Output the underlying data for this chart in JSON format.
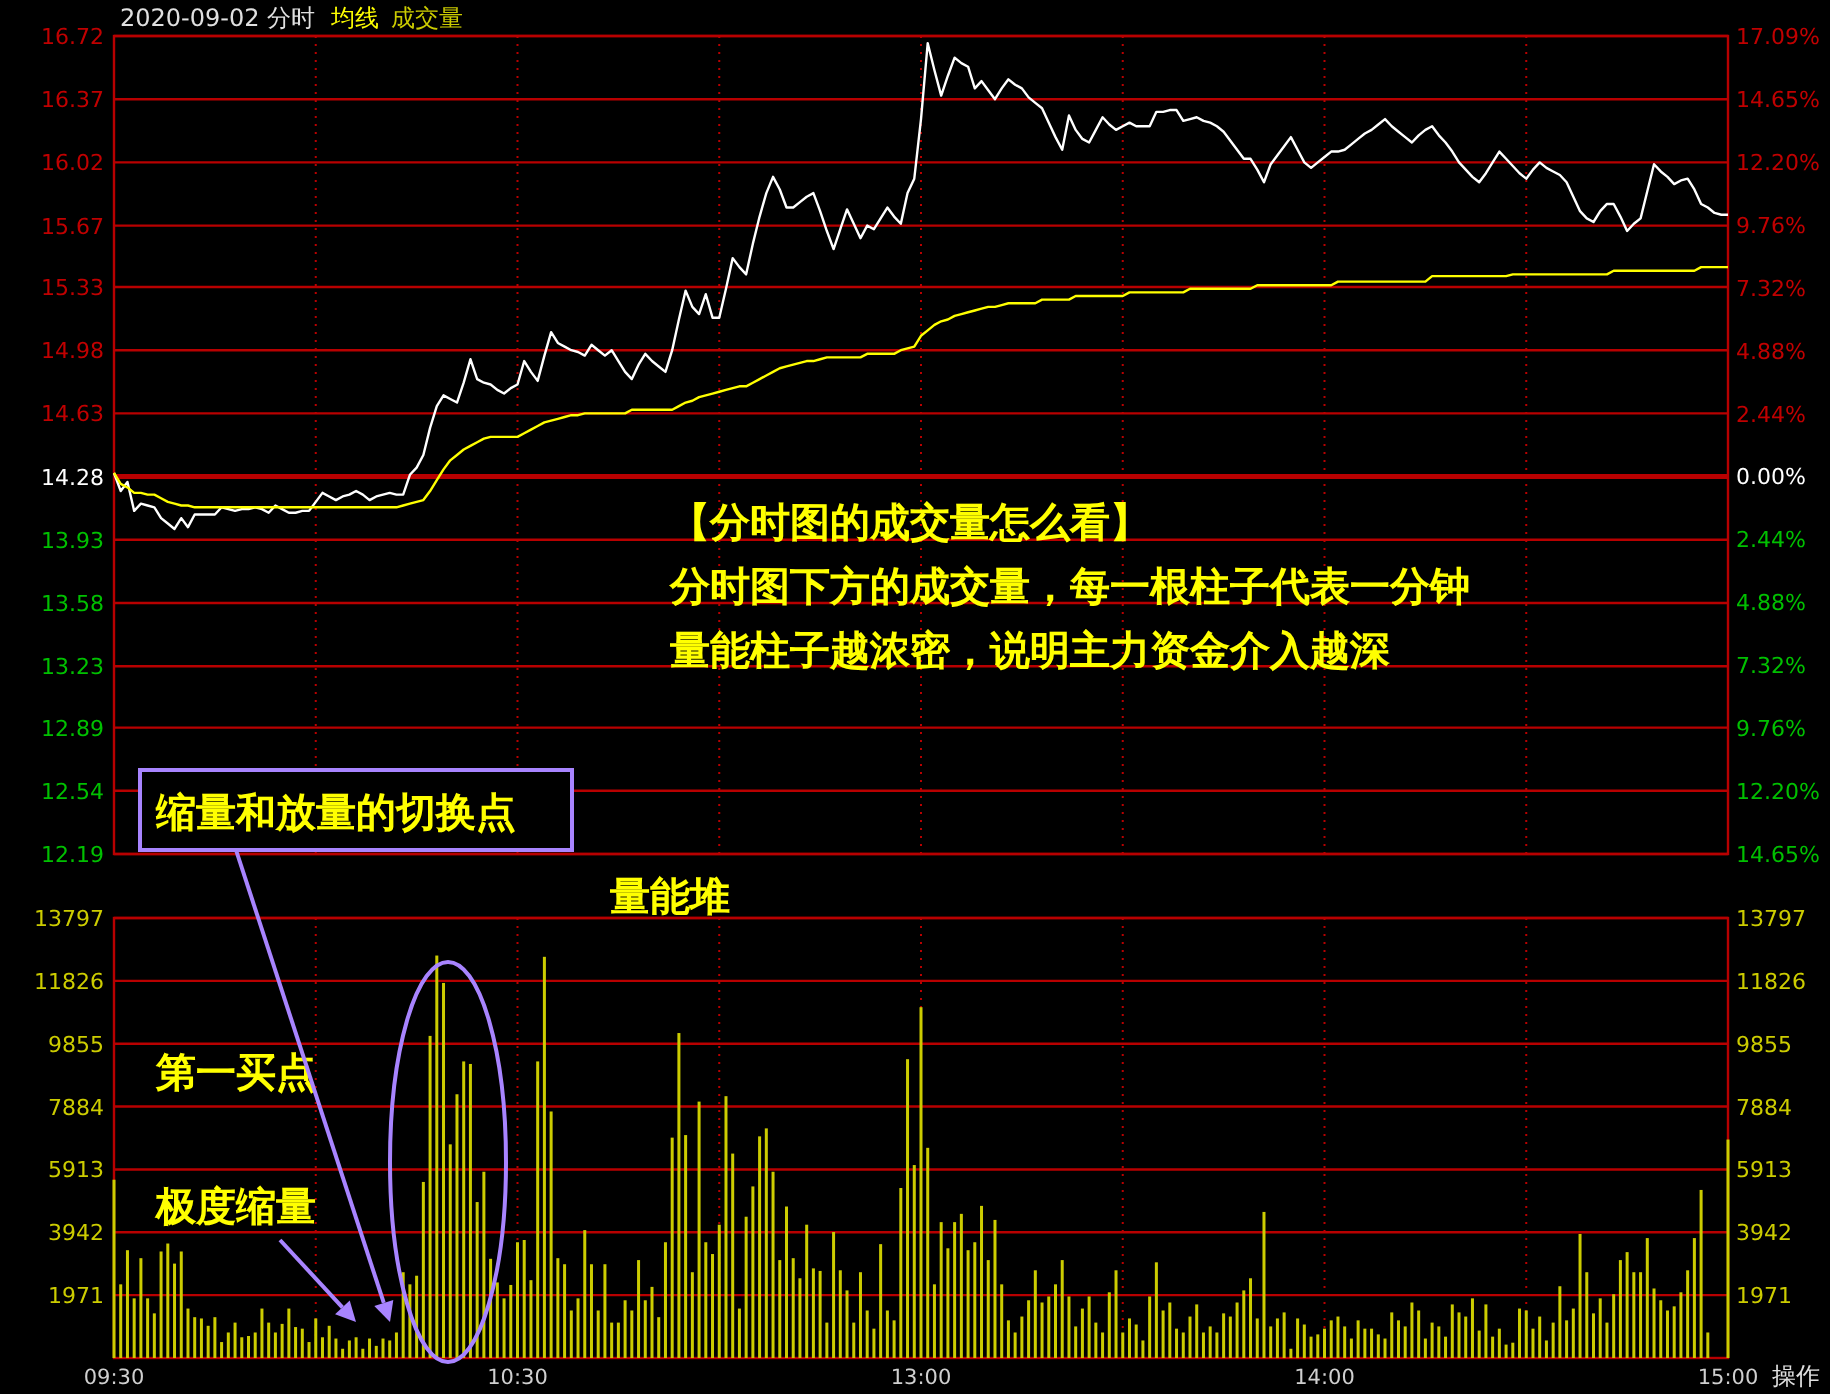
{
  "chart_data": [
    {
      "type": "line",
      "title": "2020-09-02 分时",
      "legend": "top left",
      "grid": true,
      "tick_labels": "y",
      "categories": [
        "09:30",
        null,
        null,
        null,
        null,
        null,
        null,
        null,
        null,
        null,
        null,
        null,
        null,
        null,
        null,
        null,
        null,
        null,
        null,
        null,
        null,
        null,
        null,
        null,
        null,
        null,
        null,
        null,
        null,
        null,
        null,
        null,
        null,
        null,
        null,
        null,
        null,
        null,
        null,
        null,
        null,
        null,
        null,
        null,
        null,
        null,
        null,
        null,
        null,
        null,
        null,
        null,
        null,
        null,
        null,
        null,
        null,
        null,
        null,
        null,
        "10:30",
        null,
        null,
        null,
        null,
        null,
        null,
        null,
        null,
        null,
        null,
        null,
        null,
        null,
        null,
        null,
        null,
        null,
        null,
        null,
        null,
        null,
        null,
        null,
        null,
        null,
        null,
        null,
        null,
        null,
        null,
        null,
        null,
        null,
        null,
        null,
        null,
        null,
        null,
        null,
        null,
        null,
        null,
        null,
        null,
        null,
        null,
        null,
        null,
        null,
        null,
        null,
        null,
        null,
        null,
        null,
        null,
        null,
        null,
        null,
        "13:00",
        null,
        null,
        null,
        null,
        null,
        null,
        null,
        null,
        null,
        null,
        null,
        null,
        null,
        null,
        null,
        null,
        null,
        null,
        null,
        null,
        null,
        null,
        null,
        null,
        null,
        null,
        null,
        null,
        null,
        null,
        null,
        null,
        null,
        null,
        null,
        null,
        null,
        null,
        null,
        null,
        null,
        null,
        null,
        null,
        null,
        null,
        null,
        null,
        null,
        null,
        null,
        null,
        null,
        null,
        null,
        null,
        null,
        null,
        null,
        "14:00",
        null,
        null,
        null,
        null,
        null,
        null,
        null,
        null,
        null,
        null,
        null,
        null,
        null,
        null,
        null,
        null,
        null,
        null,
        null,
        null,
        null,
        null,
        null,
        null,
        null,
        null,
        null,
        null,
        null,
        null,
        null,
        null,
        null,
        null,
        null,
        null,
        null,
        null,
        null,
        null,
        null,
        null,
        null,
        null,
        null,
        null,
        null,
        null,
        null,
        null,
        null,
        null,
        null,
        null,
        null,
        null,
        null,
        null,
        null,
        "15:00"
      ],
      "ylim": [
        12.19,
        16.72
      ],
      "yticks": [
        16.72,
        16.37,
        16.02,
        15.67,
        15.33,
        14.98,
        14.63,
        14.28,
        13.93,
        13.58,
        13.23,
        12.89,
        12.54,
        12.19
      ],
      "y2lim": [
        -14.65,
        17.09
      ],
      "y2ticks": [
        {
          "value": 17.09,
          "label": "17.09%"
        },
        {
          "value": 14.65,
          "label": "14.65%"
        },
        {
          "value": 12.2,
          "label": "12.20%"
        },
        {
          "value": 9.76,
          "label": "9.76%"
        },
        {
          "value": 7.32,
          "label": "7.32%"
        },
        {
          "value": 4.88,
          "label": "4.88%"
        },
        {
          "value": 2.44,
          "label": "2.44%"
        },
        {
          "value": 0,
          "label": "0.00%"
        },
        {
          "value": -2.44,
          "label": "2.44%"
        },
        {
          "value": -4.88,
          "label": "4.88%"
        },
        {
          "value": -7.32,
          "label": "7.32%"
        },
        {
          "value": -9.76,
          "label": "9.76%"
        },
        {
          "value": -12.2,
          "label": "12.20%"
        },
        {
          "value": -14.65,
          "label": "14.65%"
        }
      ],
      "ref_lines": [
        {
          "axis": "y",
          "value": 14.28
        }
      ],
      "annotations": [
        "【分时图的成交量怎么看】",
        "分时图下方的成交量，每一根柱子代表一分钟",
        "量能柱子越浓密，说明主力资金介入越深"
      ],
      "series": [
        {
          "color": "#ffffff",
          "values": [
            14.3,
            14.2,
            14.25,
            14.09,
            14.13,
            14.12,
            14.11,
            14.05,
            14.02,
            13.99,
            14.05,
            14.0,
            14.07,
            14.07,
            14.07,
            14.07,
            14.11,
            14.1,
            14.09,
            14.1,
            14.1,
            14.11,
            14.1,
            14.08,
            14.12,
            14.1,
            14.08,
            14.08,
            14.09,
            14.09,
            14.14,
            14.19,
            14.17,
            14.15,
            14.17,
            14.18,
            14.2,
            14.18,
            14.15,
            14.17,
            14.18,
            14.19,
            14.18,
            14.18,
            14.29,
            14.33,
            14.4,
            14.55,
            14.67,
            14.73,
            14.71,
            14.69,
            14.8,
            14.93,
            14.82,
            14.8,
            14.79,
            14.76,
            14.74,
            14.77,
            14.79,
            14.92,
            14.86,
            14.81,
            14.95,
            15.08,
            15.02,
            15.0,
            14.98,
            14.97,
            14.95,
            15.01,
            14.98,
            14.95,
            14.98,
            14.92,
            14.86,
            14.82,
            14.9,
            14.96,
            14.92,
            14.89,
            14.86,
            14.98,
            15.15,
            15.31,
            15.22,
            15.18,
            15.29,
            15.16,
            15.16,
            15.32,
            15.49,
            15.44,
            15.4,
            15.57,
            15.72,
            15.85,
            15.94,
            15.87,
            15.77,
            15.77,
            15.8,
            15.83,
            15.85,
            15.75,
            15.64,
            15.54,
            15.65,
            15.76,
            15.68,
            15.6,
            15.67,
            15.65,
            15.71,
            15.77,
            15.72,
            15.68,
            15.85,
            15.93,
            16.26,
            16.68,
            16.53,
            16.39,
            16.5,
            16.6,
            16.57,
            16.55,
            16.43,
            16.47,
            16.42,
            16.37,
            16.43,
            16.48,
            16.45,
            16.43,
            16.38,
            16.35,
            16.32,
            16.24,
            16.16,
            16.09,
            16.28,
            16.2,
            16.15,
            16.13,
            16.2,
            16.27,
            16.23,
            16.2,
            16.22,
            16.24,
            16.22,
            16.22,
            16.22,
            16.3,
            16.3,
            16.31,
            16.31,
            16.25,
            16.26,
            16.27,
            16.25,
            16.24,
            16.22,
            16.19,
            16.14,
            16.09,
            16.04,
            16.04,
            15.98,
            15.91,
            16.01,
            16.06,
            16.11,
            16.16,
            16.09,
            16.02,
            15.99,
            16.02,
            16.05,
            16.08,
            16.08,
            16.09,
            16.12,
            16.15,
            16.18,
            16.2,
            16.23,
            16.26,
            16.22,
            16.19,
            16.16,
            16.13,
            16.17,
            16.2,
            16.22,
            16.17,
            16.13,
            16.08,
            16.02,
            15.98,
            15.94,
            15.91,
            15.96,
            16.02,
            16.08,
            16.04,
            16.0,
            15.96,
            15.93,
            15.98,
            16.02,
            15.99,
            15.97,
            15.95,
            15.91,
            15.83,
            15.75,
            15.71,
            15.69,
            15.75,
            15.79,
            15.79,
            15.72,
            15.64,
            15.68,
            15.71,
            15.86,
            16.01,
            15.97,
            15.94,
            15.9,
            15.92,
            15.93,
            15.87,
            15.79,
            15.77,
            15.74,
            15.73,
            15.73
          ]
        },
        {
          "name": "均线",
          "color": "#ffff00",
          "values": [
            14.3,
            14.24,
            14.22,
            14.19,
            14.19,
            14.18,
            14.18,
            14.16,
            14.14,
            14.13,
            14.12,
            14.12,
            14.11,
            14.11,
            14.11,
            14.11,
            14.11,
            14.11,
            14.11,
            14.11,
            14.11,
            14.11,
            14.11,
            14.11,
            14.11,
            14.11,
            14.11,
            14.11,
            14.11,
            14.11,
            14.11,
            14.11,
            14.11,
            14.11,
            14.11,
            14.11,
            14.11,
            14.11,
            14.11,
            14.11,
            14.11,
            14.11,
            14.11,
            14.12,
            14.13,
            14.14,
            14.15,
            14.2,
            14.26,
            14.32,
            14.37,
            14.4,
            14.43,
            14.45,
            14.47,
            14.49,
            14.5,
            14.5,
            14.5,
            14.5,
            14.5,
            14.52,
            14.54,
            14.56,
            14.58,
            14.59,
            14.6,
            14.61,
            14.62,
            14.62,
            14.63,
            14.63,
            14.63,
            14.63,
            14.63,
            14.63,
            14.63,
            14.65,
            14.65,
            14.65,
            14.65,
            14.65,
            14.65,
            14.65,
            14.67,
            14.69,
            14.7,
            14.72,
            14.73,
            14.74,
            14.75,
            14.76,
            14.77,
            14.78,
            14.78,
            14.8,
            14.82,
            14.84,
            14.86,
            14.88,
            14.89,
            14.9,
            14.91,
            14.92,
            14.92,
            14.93,
            14.94,
            14.94,
            14.94,
            14.94,
            14.94,
            14.94,
            14.96,
            14.96,
            14.96,
            14.96,
            14.96,
            14.98,
            14.99,
            15.0,
            15.06,
            15.09,
            15.12,
            15.14,
            15.15,
            15.17,
            15.18,
            15.19,
            15.2,
            15.21,
            15.22,
            15.22,
            15.23,
            15.24,
            15.24,
            15.24,
            15.24,
            15.24,
            15.26,
            15.26,
            15.26,
            15.26,
            15.26,
            15.28,
            15.28,
            15.28,
            15.28,
            15.28,
            15.28,
            15.28,
            15.28,
            15.3,
            15.3,
            15.3,
            15.3,
            15.3,
            15.3,
            15.3,
            15.3,
            15.3,
            15.32,
            15.32,
            15.32,
            15.32,
            15.32,
            15.32,
            15.32,
            15.32,
            15.32,
            15.32,
            15.34,
            15.34,
            15.34,
            15.34,
            15.34,
            15.34,
            15.34,
            15.34,
            15.34,
            15.34,
            15.34,
            15.34,
            15.36,
            15.36,
            15.36,
            15.36,
            15.36,
            15.36,
            15.36,
            15.36,
            15.36,
            15.36,
            15.36,
            15.36,
            15.36,
            15.36,
            15.39,
            15.39,
            15.39,
            15.39,
            15.39,
            15.39,
            15.39,
            15.39,
            15.39,
            15.39,
            15.39,
            15.39,
            15.4,
            15.4,
            15.4,
            15.4,
            15.4,
            15.4,
            15.4,
            15.4,
            15.4,
            15.4,
            15.4,
            15.4,
            15.4,
            15.4,
            15.4,
            15.42,
            15.42,
            15.42,
            15.42,
            15.42,
            15.42,
            15.42,
            15.42,
            15.42,
            15.42,
            15.42,
            15.42,
            15.42,
            15.44,
            15.44,
            15.44,
            15.44,
            15.44
          ]
        }
      ]
    },
    {
      "type": "bar",
      "legend": "top left",
      "grid": true,
      "categories": [
        "09:30",
        null,
        null,
        null,
        null,
        null,
        null,
        null,
        null,
        null,
        null,
        null,
        null,
        null,
        null,
        null,
        null,
        null,
        null,
        null,
        null,
        null,
        null,
        null,
        null,
        null,
        null,
        null,
        null,
        null,
        null,
        null,
        null,
        null,
        null,
        null,
        null,
        null,
        null,
        null,
        null,
        null,
        null,
        null,
        null,
        null,
        null,
        null,
        null,
        null,
        null,
        null,
        null,
        null,
        null,
        null,
        null,
        null,
        null,
        null,
        "10:30",
        null,
        null,
        null,
        null,
        null,
        null,
        null,
        null,
        null,
        null,
        null,
        null,
        null,
        null,
        null,
        null,
        null,
        null,
        null,
        null,
        null,
        null,
        null,
        null,
        null,
        null,
        null,
        null,
        null,
        null,
        null,
        null,
        null,
        null,
        null,
        null,
        null,
        null,
        null,
        null,
        null,
        null,
        null,
        null,
        null,
        null,
        null,
        null,
        null,
        null,
        null,
        null,
        null,
        null,
        null,
        null,
        null,
        null,
        null,
        "13:00",
        null,
        null,
        null,
        null,
        null,
        null,
        null,
        null,
        null,
        null,
        null,
        null,
        null,
        null,
        null,
        null,
        null,
        null,
        null,
        null,
        null,
        null,
        null,
        null,
        null,
        null,
        null,
        null,
        null,
        null,
        null,
        null,
        null,
        null,
        null,
        null,
        null,
        null,
        null,
        null,
        null,
        null,
        null,
        null,
        null,
        null,
        null,
        null,
        null,
        null,
        null,
        null,
        null,
        null,
        null,
        null,
        null,
        null,
        null,
        "14:00",
        null,
        null,
        null,
        null,
        null,
        null,
        null,
        null,
        null,
        null,
        null,
        null,
        null,
        null,
        null,
        null,
        null,
        null,
        null,
        null,
        null,
        null,
        null,
        null,
        null,
        null,
        null,
        null,
        null,
        null,
        null,
        null,
        null,
        null,
        null,
        null,
        null,
        null,
        null,
        null,
        null,
        null,
        null,
        null,
        null,
        null,
        null,
        null,
        null,
        null,
        null,
        null,
        null,
        null,
        null,
        null,
        null,
        null,
        null,
        "15:00"
      ],
      "ylim": [
        0,
        13797
      ],
      "yticks": [
        1971,
        3942,
        5913,
        7884,
        9855,
        11826,
        13797
      ],
      "y2lim": [
        0,
        13797
      ],
      "y2ticks": [
        1971,
        3942,
        5913,
        7884,
        9855,
        11826,
        13797
      ],
      "annotations": [
        "量能堆",
        "第一买点",
        "极度缩量",
        "缩量和放量的切换点",
        "操作"
      ],
      "series": [
        {
          "name": "成交量",
          "color": "#cccc00",
          "values": [
            5590,
            2310,
            3380,
            1870,
            3130,
            1870,
            1400,
            3340,
            3590,
            2960,
            3340,
            1550,
            1280,
            1240,
            1010,
            1280,
            500,
            800,
            1110,
            650,
            690,
            800,
            1550,
            1110,
            800,
            1070,
            1550,
            970,
            920,
            500,
            1240,
            650,
            1010,
            610,
            290,
            550,
            650,
            290,
            610,
            380,
            610,
            550,
            800,
            2690,
            2310,
            2580,
            5520,
            10100,
            12620,
            11760,
            6700,
            8270,
            9300,
            9220,
            4890,
            5840,
            3110,
            2370,
            1870,
            2290,
            3630,
            3700,
            2440,
            9300,
            12580,
            7730,
            3130,
            2940,
            1490,
            1870,
            4010,
            2940,
            1490,
            2940,
            1110,
            1110,
            1810,
            1490,
            3070,
            1810,
            2230,
            1280,
            3630,
            6910,
            10190,
            6990,
            2690,
            8040,
            3630,
            3260,
            4180,
            8210,
            6410,
            1550,
            4430,
            5380,
            6950,
            7200,
            5840,
            3070,
            4750,
            3130,
            2500,
            4180,
            2810,
            2730,
            1110,
            3950,
            2750,
            2120,
            1110,
            2690,
            1490,
            920,
            3570,
            1490,
            1180,
            5330,
            9370,
            6050,
            11000,
            6590,
            2310,
            4260,
            3440,
            4260,
            4520,
            3380,
            3630,
            4770,
            3070,
            4330,
            2310,
            1180,
            800,
            1300,
            1810,
            2750,
            1740,
            1930,
            2310,
            3070,
            1930,
            990,
            1550,
            1930,
            1110,
            800,
            2060,
            2750,
            800,
            1240,
            1050,
            550,
            1930,
            3000,
            1490,
            1740,
            920,
            800,
            1300,
            1680,
            800,
            990,
            800,
            1400,
            1300,
            1740,
            2120,
            2500,
            1240,
            4580,
            990,
            1240,
            1430,
            290,
            1240,
            1050,
            670,
            740,
            920,
            1180,
            1300,
            990,
            610,
            1180,
            920,
            920,
            740,
            610,
            1430,
            1180,
            990,
            1740,
            1490,
            610,
            1110,
            990,
            670,
            1680,
            1430,
            1300,
            1870,
            860,
            1680,
            670,
            920,
            420,
            480,
            1550,
            1490,
            920,
            1300,
            550,
            1110,
            2250,
            1180,
            1550,
            3890,
            2690,
            1400,
            1870,
            1110,
            2000,
            3070,
            3320,
            2690,
            2690,
            3760,
            2180,
            1810,
            1490,
            1620,
            2060,
            2750,
            3760,
            5270,
            800,
            null,
            null,
            6850
          ]
        }
      ]
    }
  ]
}
